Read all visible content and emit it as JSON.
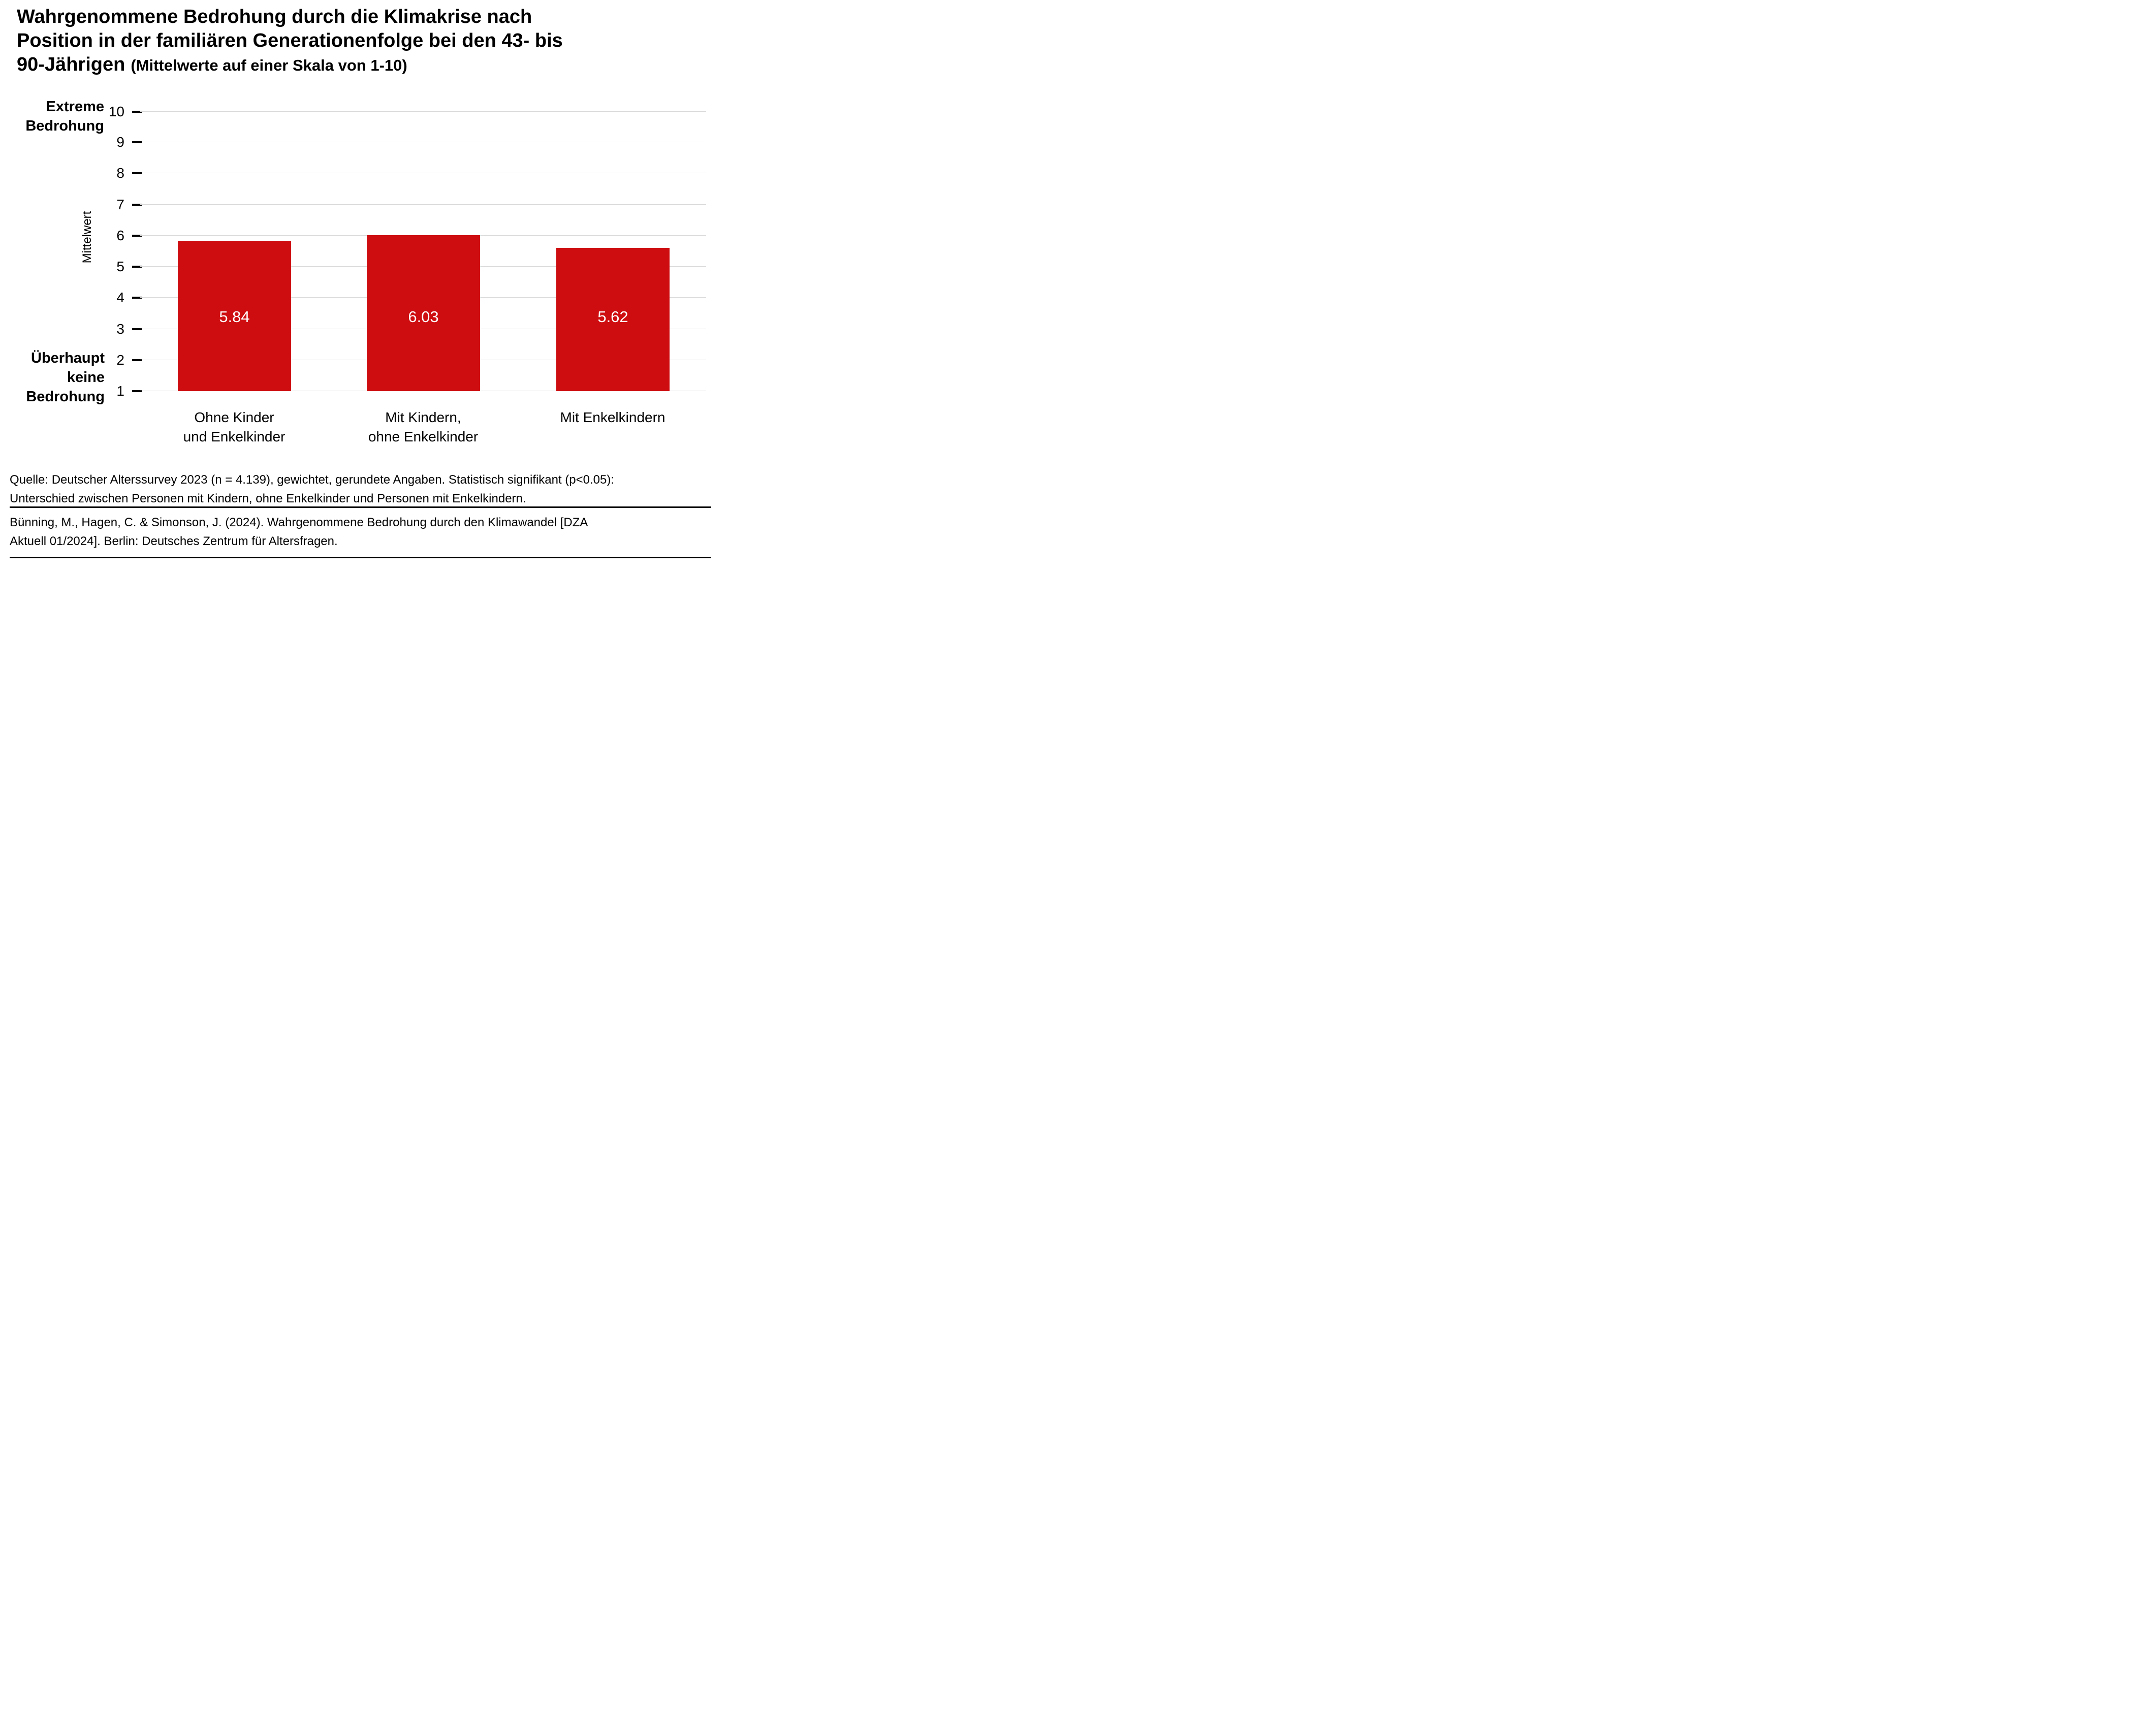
{
  "page": {
    "title": {
      "line1": "Wahrgenommene Bedrohung durch die Klimakrise nach",
      "line2": "Position in der familiären Generationenfolge bei den 43- bis",
      "line3_main": "90-Jährigen",
      "line3_suffix": "(Mittelwerte auf einer Skala von 1-10)"
    },
    "source": {
      "line1": "Quelle: Deutscher Alterssurvey 2023 (n = 4.139), gewichtet, gerundete Angaben. Statistisch signifikant (p<0.05):",
      "line2": "Unterschied zwischen Personen mit Kindern, ohne Enkelkinder und Personen mit Enkelkindern."
    },
    "citation": {
      "line1": "Bünning, M., Hagen, C. & Simonson, J. (2024). Wahrgenommene Bedrohung durch den Klimawandel [DZA",
      "line2": "Aktuell 01/2024]. Berlin: Deutsches Zentrum für Altersfragen."
    }
  },
  "chart_data": {
    "type": "bar",
    "title": "Wahrgenommene Bedrohung durch die Klimakrise nach Position in der familiären Generationenfolge bei den 43- bis 90-Jährigen (Mittelwerte auf einer Skala von 1-10)",
    "categories": [
      "Ohne Kinder und Enkelkinder",
      "Mit Kindern, ohne Enkelkinder",
      "Mit Enkelkindern"
    ],
    "category_lines": [
      [
        "Ohne Kinder",
        "und Enkelkinder"
      ],
      [
        "Mit Kindern,",
        "ohne Enkelkinder"
      ],
      [
        "Mit Enkelkindern",
        ""
      ]
    ],
    "values": [
      5.84,
      6.03,
      5.62
    ],
    "value_labels": [
      "5.84",
      "6.03",
      "5.62"
    ],
    "ylabel": "Mittelwert",
    "xlabel": "",
    "y_axis_top_label_lines": [
      "Extreme",
      "Bedrohung"
    ],
    "y_axis_bottom_label_lines": [
      "Überhaupt",
      "keine",
      "Bedrohung"
    ],
    "yticks": [
      1,
      2,
      3,
      4,
      5,
      6,
      7,
      8,
      9,
      10
    ],
    "ylim": [
      1,
      10
    ],
    "grid": true,
    "legend": false,
    "bar_color": "#ce0d10",
    "bar_label_color": "#ffffff",
    "gridline_color": "#d9d9d9",
    "tick_color": "#000000"
  }
}
